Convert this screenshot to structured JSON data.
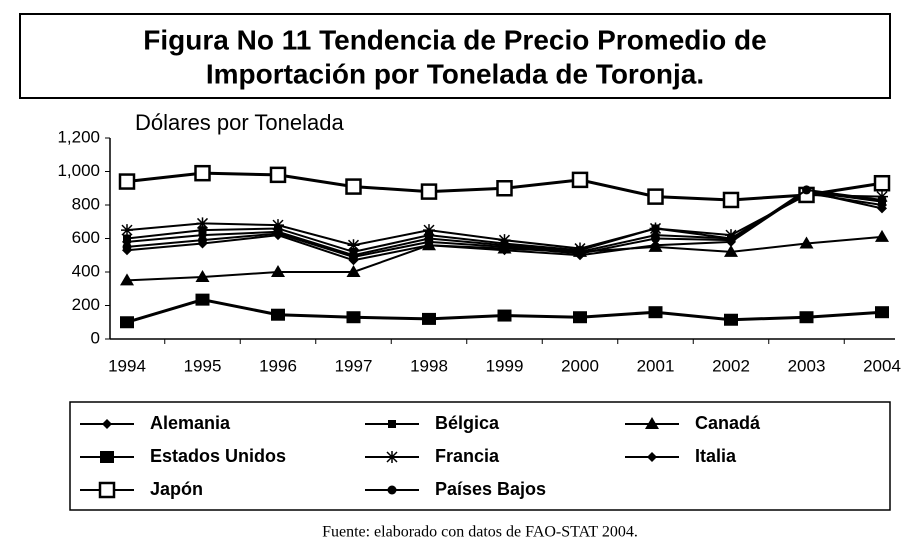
{
  "chart_data": {
    "type": "line",
    "title": [
      "Figura No 11 Tendencia de Precio Promedio de",
      "Importación por Tonelada de Toronja."
    ],
    "y_label": "Dólares por Tonelada",
    "source": "Fuente: elaborado con datos de FAO-STAT 2004.",
    "categories": [
      "1994",
      "1995",
      "1996",
      "1997",
      "1998",
      "1999",
      "2000",
      "2001",
      "2002",
      "2003",
      "2004"
    ],
    "ylim": [
      0,
      1200
    ],
    "yticks": [
      0,
      200,
      400,
      600,
      800,
      {
        "value": 1000,
        "label": "1,000"
      },
      {
        "value": 1200,
        "label": "1,200"
      }
    ],
    "series": [
      {
        "name": "Alemania",
        "color": "#000000",
        "marker": "diamond",
        "values": [
          580,
          620,
          640,
          500,
          600,
          560,
          520,
          620,
          600,
          870,
          800
        ]
      },
      {
        "name": "Bélgica",
        "color": "#000000",
        "marker": "square",
        "values": [
          600,
          650,
          660,
          520,
          620,
          570,
          530,
          660,
          600,
          880,
          820
        ]
      },
      {
        "name": "Canadá",
        "color": "#000000",
        "marker": "triangle",
        "values": [
          350,
          370,
          400,
          400,
          560,
          540,
          520,
          550,
          520,
          570,
          610
        ]
      },
      {
        "name": "Estados Unidos",
        "color": "#000000",
        "marker": "bigsquare",
        "values": [
          100,
          235,
          145,
          130,
          120,
          140,
          130,
          160,
          115,
          130,
          160
        ]
      },
      {
        "name": "Francia",
        "color": "#000000",
        "marker": "star",
        "values": [
          650,
          690,
          680,
          560,
          650,
          590,
          540,
          660,
          620,
          860,
          850
        ]
      },
      {
        "name": "Italia",
        "color": "#000000",
        "marker": "diamond",
        "values": [
          530,
          570,
          620,
          470,
          560,
          530,
          500,
          560,
          580,
          880,
          780
        ]
      },
      {
        "name": "Japón",
        "color": "#000000",
        "marker": "opensquare",
        "values": [
          940,
          990,
          980,
          910,
          880,
          900,
          950,
          850,
          830,
          860,
          930
        ]
      },
      {
        "name": "Países Bajos",
        "color": "#000000",
        "marker": "circle",
        "values": [
          550,
          590,
          630,
          490,
          580,
          550,
          510,
          600,
          590,
          890,
          830
        ]
      }
    ]
  }
}
